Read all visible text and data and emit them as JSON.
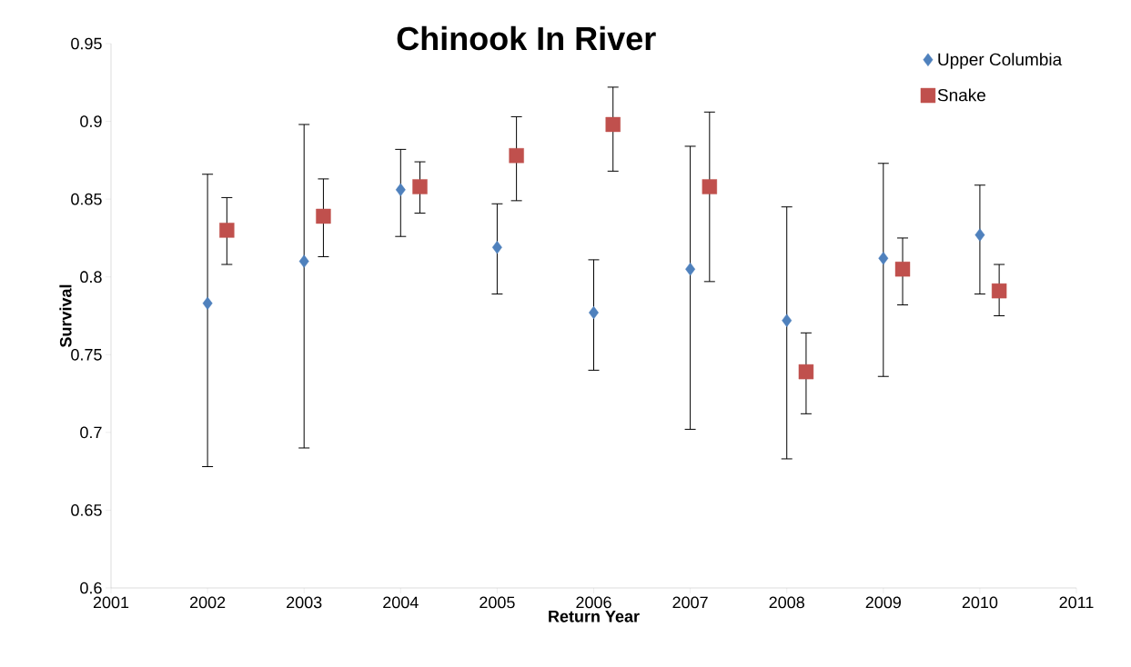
{
  "chart_data": {
    "type": "scatter",
    "title": "Chinook In River",
    "xlabel": "Return Year",
    "ylabel": "Survival",
    "xlim": [
      2001,
      2011
    ],
    "xticks": [
      2001,
      2002,
      2003,
      2004,
      2005,
      2006,
      2007,
      2008,
      2009,
      2010,
      2011
    ],
    "ylim": [
      0.6,
      0.95
    ],
    "yticks": [
      0.6,
      0.65,
      0.7,
      0.75,
      0.8,
      0.85,
      0.9,
      0.95
    ],
    "legend": "top right",
    "series": [
      {
        "name": "Upper Columbia",
        "color": "#4f81bd",
        "marker": "diamond",
        "x": [
          2002,
          2003,
          2004,
          2005,
          2006,
          2007,
          2008,
          2009,
          2010
        ],
        "values": [
          0.783,
          0.81,
          0.856,
          0.819,
          0.777,
          0.805,
          0.772,
          0.812,
          0.827
        ],
        "errors": [
          [
            0.678,
            0.866
          ],
          [
            0.69,
            0.898
          ],
          [
            0.826,
            0.882
          ],
          [
            0.789,
            0.847
          ],
          [
            0.74,
            0.811
          ],
          [
            0.702,
            0.884
          ],
          [
            0.683,
            0.845
          ],
          [
            0.736,
            0.873
          ],
          [
            0.789,
            0.859
          ]
        ]
      },
      {
        "name": "Snake",
        "color": "#c0504d",
        "marker": "square",
        "x": [
          2002.2,
          2003.2,
          2004.2,
          2005.2,
          2006.2,
          2007.2,
          2008.2,
          2009.2,
          2010.2
        ],
        "values": [
          0.83,
          0.839,
          0.858,
          0.878,
          0.898,
          0.858,
          0.739,
          0.805,
          0.791
        ],
        "errors": [
          [
            0.808,
            0.851
          ],
          [
            0.813,
            0.863
          ],
          [
            0.841,
            0.874
          ],
          [
            0.849,
            0.903
          ],
          [
            0.868,
            0.922
          ],
          [
            0.797,
            0.906
          ],
          [
            0.712,
            0.764
          ],
          [
            0.782,
            0.825
          ],
          [
            0.775,
            0.808
          ]
        ]
      }
    ]
  }
}
